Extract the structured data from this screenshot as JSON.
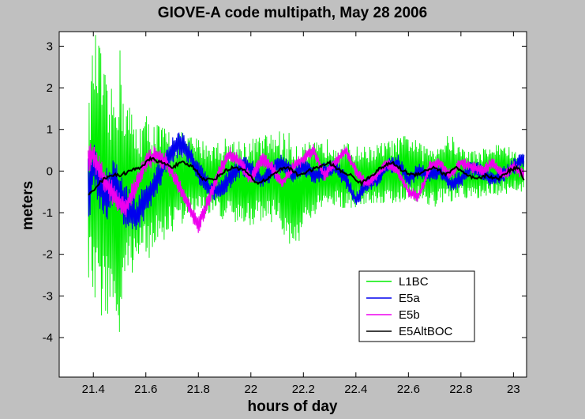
{
  "chart_data": {
    "type": "line",
    "title": "GIOVE-A code multipath, May 28 2006",
    "xlabel": "hours of day",
    "ylabel": "meters",
    "xlim": [
      21.27,
      23.05
    ],
    "ylim": [
      -4.95,
      3.35
    ],
    "xticks": [
      21.4,
      21.6,
      21.8,
      22,
      22.2,
      22.4,
      22.6,
      22.8,
      23
    ],
    "xtick_labels": [
      "21.4",
      "21.6",
      "21.8",
      "22",
      "22.2",
      "22.4",
      "22.6",
      "22.8",
      "23"
    ],
    "yticks": [
      3,
      2,
      1,
      0,
      -1,
      -2,
      -3,
      -4
    ],
    "ytick_labels": [
      "3",
      "2",
      "1",
      "0",
      "-1",
      "-2",
      "-3",
      "-4"
    ],
    "grid": false,
    "legend_position": "bottom-right",
    "series": [
      {
        "name": "L1BC",
        "color": "#00ee00",
        "x": [
          21.38,
          21.4,
          21.42,
          21.44,
          21.46,
          21.48,
          21.5,
          21.52,
          21.54,
          21.56,
          21.6,
          21.64,
          21.7,
          21.76,
          21.8,
          21.86,
          21.9,
          21.96,
          22.0,
          22.06,
          22.1,
          22.16,
          22.2,
          22.26,
          22.3,
          22.36,
          22.4,
          22.46,
          22.5,
          22.56,
          22.6,
          22.66,
          22.7,
          22.76,
          22.8,
          22.86,
          22.9,
          22.96,
          23.0,
          23.04
        ],
        "upper": [
          1.3,
          3.3,
          3.3,
          2.5,
          1.8,
          2.2,
          3.1,
          2.0,
          1.6,
          1.2,
          1.4,
          1.2,
          1.0,
          0.9,
          0.8,
          0.7,
          0.8,
          0.8,
          0.8,
          0.9,
          1.0,
          0.9,
          0.7,
          0.7,
          0.8,
          0.7,
          0.6,
          0.6,
          0.7,
          0.8,
          0.9,
          0.6,
          0.7,
          0.9,
          0.6,
          0.5,
          0.6,
          0.7,
          0.5,
          0.4
        ],
        "lower": [
          -2.7,
          -3.2,
          -3.9,
          -3.3,
          -3.7,
          -3.4,
          -4.6,
          -3.2,
          -2.5,
          -2.4,
          -2.2,
          -1.9,
          -1.5,
          -1.2,
          -1.0,
          -1.1,
          -1.2,
          -1.4,
          -1.3,
          -1.2,
          -1.3,
          -2.0,
          -1.5,
          -1.0,
          -0.9,
          -0.9,
          -0.9,
          -0.8,
          -0.8,
          -0.8,
          -0.7,
          -0.8,
          -0.9,
          -0.8,
          -0.7,
          -0.7,
          -0.6,
          -0.6,
          -0.5,
          -0.5
        ]
      },
      {
        "name": "E5a",
        "color": "#0000ee",
        "x": [
          21.38,
          21.4,
          21.44,
          21.48,
          21.52,
          21.56,
          21.6,
          21.64,
          21.68,
          21.72,
          21.76,
          21.8,
          21.84,
          21.88,
          21.92,
          21.96,
          22.0,
          22.04,
          22.08,
          22.12,
          22.16,
          22.2,
          22.24,
          22.28,
          22.32,
          22.36,
          22.4,
          22.44,
          22.48,
          22.52,
          22.56,
          22.6,
          22.64,
          22.68,
          22.72,
          22.76,
          22.8,
          22.84,
          22.88,
          22.92,
          22.96,
          23.0,
          23.04
        ],
        "y": [
          -0.6,
          0.2,
          -0.6,
          -0.3,
          -0.8,
          -1.1,
          -0.7,
          -0.3,
          0.3,
          0.7,
          0.5,
          0.0,
          -0.4,
          -0.5,
          -0.2,
          0.1,
          0.1,
          -0.2,
          0.0,
          0.2,
          -0.1,
          0.1,
          -0.1,
          0.0,
          0.1,
          -0.2,
          -0.7,
          -0.3,
          -0.2,
          0.1,
          0.2,
          -0.2,
          0.0,
          -0.1,
          0.0,
          -0.3,
          -0.2,
          0.1,
          0.0,
          -0.2,
          -0.1,
          0.1,
          0.3
        ],
        "band": [
          0.9,
          0.6,
          0.7,
          0.6,
          0.6,
          0.5,
          0.4,
          0.4,
          0.3,
          0.4,
          0.3,
          0.3,
          0.25,
          0.25,
          0.25,
          0.25,
          0.25,
          0.25,
          0.25,
          0.22,
          0.22,
          0.22,
          0.22,
          0.22,
          0.2,
          0.2,
          0.2,
          0.2,
          0.2,
          0.2,
          0.2,
          0.2,
          0.2,
          0.2,
          0.2,
          0.2,
          0.2,
          0.2,
          0.2,
          0.2,
          0.2,
          0.2,
          0.2
        ]
      },
      {
        "name": "E5b",
        "color": "#ee00ee",
        "x": [
          21.38,
          21.4,
          21.44,
          21.48,
          21.52,
          21.56,
          21.6,
          21.64,
          21.68,
          21.72,
          21.76,
          21.8,
          21.84,
          21.88,
          21.92,
          21.96,
          22.0,
          22.04,
          22.08,
          22.12,
          22.16,
          22.2,
          22.24,
          22.28,
          22.32,
          22.36,
          22.4,
          22.44,
          22.48,
          22.52,
          22.56,
          22.6,
          22.64,
          22.68,
          22.72,
          22.76,
          22.8,
          22.84,
          22.88,
          22.92,
          22.96,
          23.0,
          23.04
        ],
        "y": [
          0.3,
          0.4,
          -0.2,
          -0.6,
          -0.9,
          -0.4,
          0.2,
          0.4,
          0.2,
          -0.3,
          -0.8,
          -1.3,
          -0.7,
          0.0,
          0.4,
          0.2,
          -0.2,
          0.3,
          0.1,
          -0.3,
          0.1,
          0.3,
          0.5,
          -0.1,
          0.2,
          0.5,
          0.0,
          -0.3,
          -0.1,
          0.2,
          0.0,
          -0.5,
          -0.6,
          0.1,
          0.2,
          -0.1,
          0.2,
          0.1,
          0.0,
          0.2,
          -0.1,
          0.1,
          -0.1
        ],
        "band": [
          0.35,
          0.35,
          0.3,
          0.3,
          0.3,
          0.28,
          0.25,
          0.25,
          0.22,
          0.22,
          0.22,
          0.25,
          0.2,
          0.2,
          0.18,
          0.18,
          0.18,
          0.18,
          0.18,
          0.16,
          0.16,
          0.16,
          0.16,
          0.16,
          0.15,
          0.15,
          0.15,
          0.15,
          0.15,
          0.15,
          0.15,
          0.15,
          0.15,
          0.15,
          0.15,
          0.15,
          0.15,
          0.15,
          0.15,
          0.15,
          0.15,
          0.15,
          0.15
        ]
      },
      {
        "name": "E5AltBOC",
        "color": "#000000",
        "x": [
          21.38,
          21.42,
          21.46,
          21.5,
          21.54,
          21.58,
          21.62,
          21.66,
          21.7,
          21.74,
          21.78,
          21.82,
          21.86,
          21.9,
          21.94,
          21.98,
          22.02,
          22.06,
          22.1,
          22.14,
          22.18,
          22.22,
          22.26,
          22.3,
          22.34,
          22.38,
          22.42,
          22.46,
          22.5,
          22.54,
          22.58,
          22.62,
          22.66,
          22.7,
          22.74,
          22.78,
          22.82,
          22.86,
          22.9,
          22.94,
          22.98,
          23.02,
          23.04
        ],
        "y": [
          -0.6,
          -0.3,
          -0.1,
          -0.1,
          0.0,
          0.1,
          0.3,
          0.2,
          0.1,
          0.2,
          0.1,
          -0.2,
          -0.2,
          0.0,
          0.1,
          0.0,
          -0.3,
          -0.2,
          0.0,
          0.1,
          -0.1,
          0.0,
          0.1,
          0.2,
          0.0,
          -0.1,
          -0.3,
          -0.1,
          0.1,
          0.2,
          0.0,
          -0.1,
          0.0,
          0.1,
          -0.1,
          0.1,
          -0.1,
          -0.2,
          -0.1,
          -0.2,
          0.0,
          0.1,
          -0.2
        ]
      }
    ]
  }
}
